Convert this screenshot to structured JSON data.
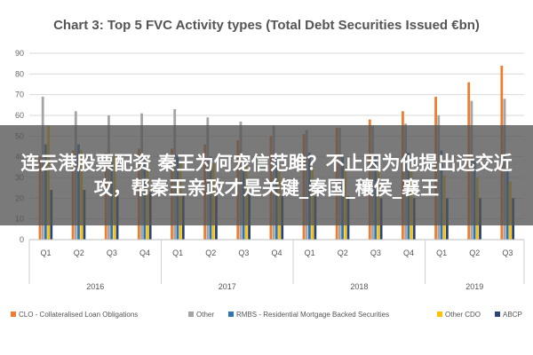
{
  "chart_data": {
    "type": "bar",
    "title": "Chart 3: Top 5 FVC Activity types (Total Debt Securities Issued €bn)",
    "xlabel": "",
    "ylabel": "",
    "ylim": [
      0,
      90
    ],
    "yticks": [
      0,
      10,
      20,
      30,
      40,
      50,
      60,
      70,
      80,
      90
    ],
    "grid": true,
    "legend_position": "bottom",
    "categories": [
      "Q1",
      "Q2",
      "Q3",
      "Q4",
      "Q1",
      "Q2",
      "Q3",
      "Q4",
      "Q1",
      "Q2",
      "Q3",
      "Q4",
      "Q1",
      "Q2",
      "Q3"
    ],
    "years": [
      {
        "label": "2016",
        "quarters": 4
      },
      {
        "label": "2017",
        "quarters": 4
      },
      {
        "label": "2018",
        "quarters": 4
      },
      {
        "label": "2019",
        "quarters": 3
      }
    ],
    "series": [
      {
        "name": "CLO - Collateralised Loan Obligations",
        "color": "#ED7D31",
        "values": [
          40,
          43,
          42,
          44,
          44,
          46,
          48,
          50,
          51,
          54,
          58,
          62,
          69,
          76,
          84
        ]
      },
      {
        "name": "Other",
        "color": "#A5A5A5",
        "values": [
          69,
          62,
          60,
          61,
          63,
          59,
          57,
          55,
          53,
          54,
          55,
          56,
          60,
          67,
          68
        ]
      },
      {
        "name": "RMBS - Residential Mortgage Backed Securities",
        "color": "#2E75B6",
        "values": [
          46,
          46,
          40,
          41,
          41,
          40,
          39,
          41,
          42,
          40,
          40,
          42,
          43,
          38,
          35
        ]
      },
      {
        "name": "Other CDO",
        "color": "#FFC000",
        "values": [
          55,
          43,
          41,
          40,
          38,
          37,
          36,
          35,
          35,
          35,
          34,
          33,
          31,
          30,
          28
        ]
      },
      {
        "name": "ABCP",
        "color": "#264478",
        "values": [
          24,
          24,
          23,
          23,
          22,
          22,
          22,
          21,
          21,
          21,
          20,
          20,
          20,
          20,
          20
        ]
      }
    ]
  },
  "overlay": {
    "text": "连云港股票配资 秦王为何宠信范雎？不止因为他提出远交近攻，帮秦王亲政才是关键_秦国_穰侯_襄王"
  }
}
